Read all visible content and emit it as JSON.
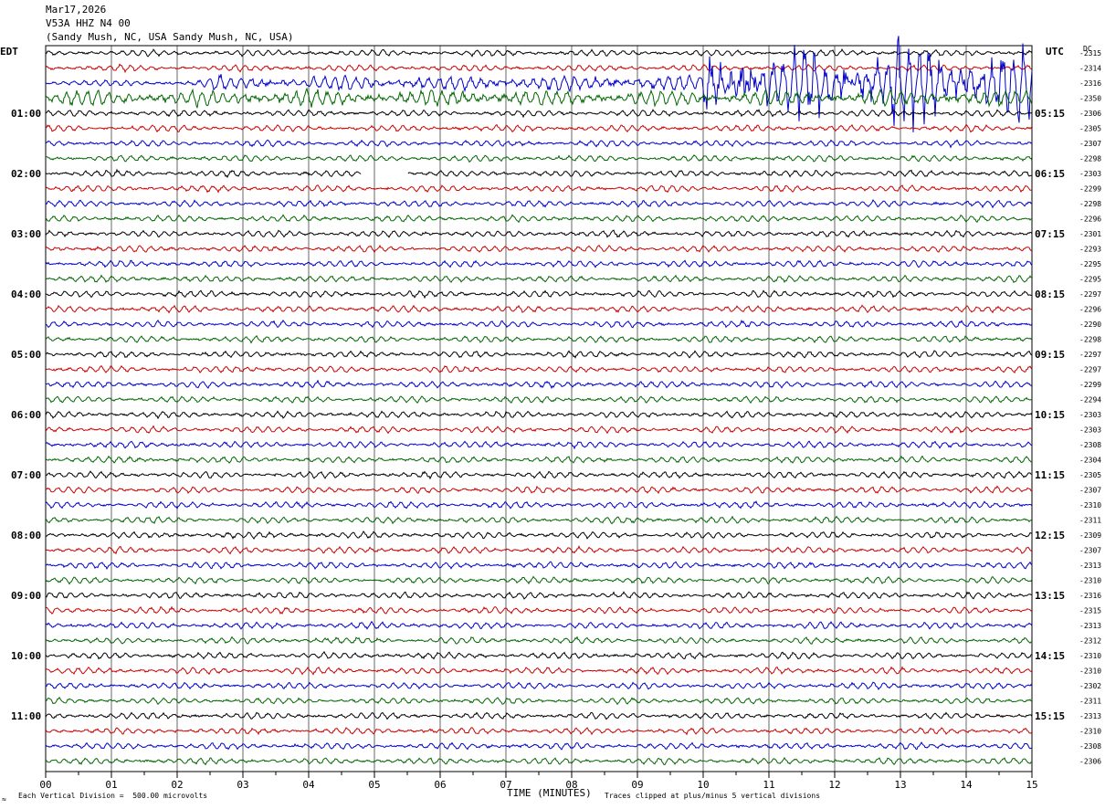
{
  "header": {
    "date": "Mar17,2026",
    "station": "V53A HHZ N4 00",
    "location": "(Sandy Mush, NC, USA Sandy Mush, NC, USA)"
  },
  "left_zone": "EDT",
  "right_zone": "UTC",
  "dc_label": "DC",
  "footer": {
    "scale": "Each Vertical Division =  500.00 microvolts",
    "clip": "Traces clipped at plus/minus 5 vertical divisions",
    "corner_mark": "≈"
  },
  "chart_data": {
    "type": "line",
    "subtype": "helicorder",
    "xlabel": "TIME (MINUTES)",
    "x_ticks": [
      "00",
      "01",
      "02",
      "03",
      "04",
      "05",
      "06",
      "07",
      "08",
      "09",
      "10",
      "11",
      "12",
      "13",
      "14",
      "15"
    ],
    "xlim": [
      0,
      15
    ],
    "trace_minutes": 15,
    "trace_colors": [
      "#000000",
      "#cc0000",
      "#0000cc",
      "#006600"
    ],
    "left_hour_labels": [
      "01:00",
      "02:00",
      "03:00",
      "04:00",
      "05:00",
      "06:00",
      "07:00",
      "08:00",
      "09:00",
      "10:00",
      "11:00"
    ],
    "right_hour_labels": [
      "05:15",
      "06:15",
      "07:15",
      "08:15",
      "09:15",
      "10:15",
      "11:15",
      "12:15",
      "13:15",
      "14:15",
      "15:15"
    ],
    "dc_values": [
      "-2315",
      "-2314",
      "-2316",
      "-2350",
      "-2306",
      "-2305",
      "-2307",
      "-2298",
      "-2303",
      "-2299",
      "-2298",
      "-2296",
      "-2301",
      "-2293",
      "-2295",
      "-2295",
      "-2297",
      "-2296",
      "-2290",
      "-2298",
      "-2297",
      "-2297",
      "-2299",
      "-2294",
      "-2303",
      "-2303",
      "-2308",
      "-2304",
      "-2305",
      "-2307",
      "-2310",
      "-2311",
      "-2309",
      "-2307",
      "-2313",
      "-2310",
      "-2316",
      "-2315",
      "-2313",
      "-2312",
      "-2310",
      "-2310",
      "-2302",
      "-2311",
      "-2313",
      "-2310",
      "-2308",
      "-2306"
    ],
    "events": [
      {
        "trace": 2,
        "start_min": 2.4,
        "end_min": 10.0,
        "amplitude": "elevated"
      },
      {
        "trace": 2,
        "start_min": 10.0,
        "end_min": 15.0,
        "amplitude": "large, clipped"
      },
      {
        "trace": 3,
        "start_min": 0.0,
        "end_min": 15.0,
        "amplitude": "elevated"
      },
      {
        "trace": 8,
        "start_min": 4.8,
        "end_min": 5.5,
        "amplitude": "data gap"
      }
    ]
  }
}
